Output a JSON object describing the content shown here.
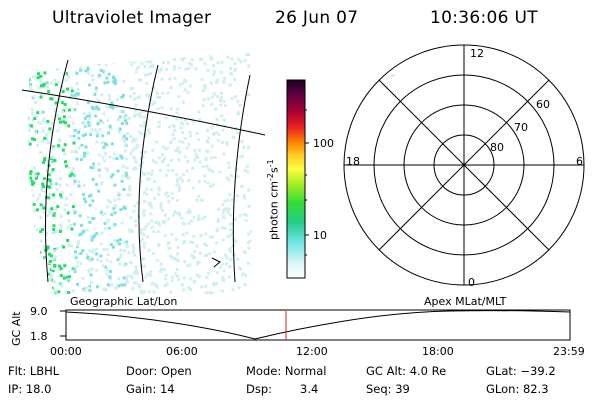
{
  "header": {
    "instrument": "Ultraviolet Imager",
    "date": "26 Jun 07",
    "time": "10:36:06 UT"
  },
  "colorbar": {
    "label": "photon cm",
    "exp1": "-2",
    "mid": "s",
    "exp2": "-1",
    "ticks": [
      "100",
      "10"
    ]
  },
  "polar": {
    "mlt_labels": {
      "top": "12",
      "left": "18",
      "right": "6",
      "bottom": "0"
    },
    "lat_labels": [
      "60",
      "70",
      "80"
    ]
  },
  "timeline": {
    "left_title": "Geographic Lat/Lon",
    "right_title": "Apex  MLat/MLT",
    "axis_label": "GC Alt",
    "y_ticks": [
      "9.0",
      "1.8"
    ],
    "x_ticks": [
      "00:00",
      "06:00",
      "12:00",
      "18:00",
      "23:59"
    ]
  },
  "info": {
    "flt": "Flt: LBHL",
    "door": "Door: Open",
    "mode": "Mode: Normal",
    "gcalt": "GC Alt: 4.0 Re",
    "glat": "GLat: −39.2",
    "ip": "IP: 18.0",
    "gain": "Gain: 14",
    "dsp_label": "Dsp:",
    "dsp_value": "3.4",
    "seq": "Seq: 39",
    "glon": "GLon:  82.3"
  },
  "colors": {
    "cyan_light": "#cfeff0",
    "cyan": "#7fe0e0",
    "green": "#22dd66",
    "marker": "#cc2222"
  }
}
